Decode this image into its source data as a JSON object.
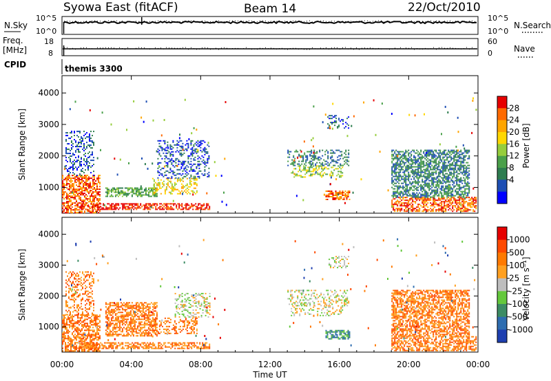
{
  "header": {
    "station": "Syowa East (fitACF)",
    "beam": "Beam 14",
    "date": "22/Oct/2010"
  },
  "nsky_panel": {
    "left_label": "N.Sky",
    "right_label": "N.Search",
    "y_ticks_left": [
      "10^5",
      "10^0"
    ],
    "y_ticks_right": [
      "10^5",
      "10^0"
    ]
  },
  "freq_panel": {
    "left_label_line1": "Freq.",
    "left_label_line2": "[MHz]",
    "right_label": "Nave",
    "y_ticks_left": [
      "18",
      "8"
    ],
    "y_ticks_right": [
      "60",
      "0"
    ]
  },
  "cpid": {
    "label": "CPID",
    "value": "themis 3300"
  },
  "chart_data": [
    {
      "type": "heatmap",
      "name": "power",
      "ylabel": "Slant Range [km]",
      "y_ticks": [
        "4000",
        "3000",
        "2000",
        "1000"
      ],
      "y_tick_values": [
        4000,
        3000,
        2000,
        1000
      ],
      "ylim": [
        180,
        4550
      ],
      "colorbar_label": "Power [dB]",
      "colorbar_ticks": [
        "28",
        "24",
        "20",
        "16",
        "12",
        "8",
        "4"
      ],
      "colorbar_colors": [
        "#0000ff",
        "#1e4fb4",
        "#2e7d50",
        "#4aa04a",
        "#96cd3c",
        "#ffd700",
        "#ffa500",
        "#ff6a00",
        "#e60000"
      ],
      "regions": [
        {
          "t0": 0.0,
          "t1": 2.2,
          "r0": 200,
          "r1": 1400,
          "level": 7
        },
        {
          "t0": 0.2,
          "t1": 1.8,
          "r0": 1400,
          "r1": 2800,
          "level": 1
        },
        {
          "t0": 1.0,
          "t1": 8.5,
          "r0": 300,
          "r1": 500,
          "level": 8
        },
        {
          "t0": 2.5,
          "t1": 5.5,
          "r0": 700,
          "r1": 1000,
          "level": 3
        },
        {
          "t0": 5.2,
          "t1": 7.8,
          "r0": 800,
          "r1": 1300,
          "level": 5
        },
        {
          "t0": 5.5,
          "t1": 8.5,
          "r0": 1300,
          "r1": 2500,
          "level": 1
        },
        {
          "t0": 13.2,
          "t1": 16.2,
          "r0": 1350,
          "r1": 1700,
          "level": 4
        },
        {
          "t0": 13.0,
          "t1": 16.5,
          "r0": 1700,
          "r1": 2200,
          "level": 2
        },
        {
          "t0": 15.2,
          "t1": 16.6,
          "r0": 600,
          "r1": 900,
          "level": 7
        },
        {
          "t0": 15.3,
          "t1": 16.5,
          "r0": 2900,
          "r1": 3300,
          "level": 1
        },
        {
          "t0": 19.0,
          "t1": 23.9,
          "r0": 250,
          "r1": 700,
          "level": 7
        },
        {
          "t0": 19.0,
          "t1": 23.5,
          "r0": 700,
          "r1": 2200,
          "level": 2
        }
      ]
    },
    {
      "type": "heatmap",
      "name": "velocity",
      "ylabel": "Slant Range [km]",
      "y_ticks": [
        "4000",
        "3000",
        "2000",
        "1000"
      ],
      "y_tick_values": [
        4000,
        3000,
        2000,
        1000
      ],
      "ylim": [
        180,
        4550
      ],
      "colorbar_label": "Velocity [m s⁻¹]",
      "colorbar_ticks": [
        "1000",
        "500",
        "100",
        "25",
        "-25",
        "-100",
        "-500",
        "-1000"
      ],
      "colorbar_colors": [
        "#1e3fb0",
        "#2e6db0",
        "#3c8c64",
        "#64c83c",
        "#bebebe",
        "#ffa020",
        "#ff7a00",
        "#ff4a00",
        "#e60000"
      ],
      "regions": [
        {
          "t0": 0.0,
          "t1": 2.2,
          "r0": 200,
          "r1": 1400,
          "level": 6
        },
        {
          "t0": 0.2,
          "t1": 1.8,
          "r0": 1400,
          "r1": 2800,
          "level": 6
        },
        {
          "t0": 1.0,
          "t1": 8.5,
          "r0": 300,
          "r1": 500,
          "level": 6
        },
        {
          "t0": 2.5,
          "t1": 5.5,
          "r0": 700,
          "r1": 1800,
          "level": 6
        },
        {
          "t0": 5.2,
          "t1": 7.8,
          "r0": 800,
          "r1": 1300,
          "level": 6
        },
        {
          "t0": 6.5,
          "t1": 8.5,
          "r0": 1300,
          "r1": 2100,
          "level": 4
        },
        {
          "t0": 13.2,
          "t1": 16.2,
          "r0": 1350,
          "r1": 1700,
          "level": 4
        },
        {
          "t0": 13.0,
          "t1": 16.5,
          "r0": 1700,
          "r1": 2200,
          "level": 4
        },
        {
          "t0": 15.2,
          "t1": 16.6,
          "r0": 600,
          "r1": 900,
          "level": 2
        },
        {
          "t0": 15.3,
          "t1": 16.5,
          "r0": 2900,
          "r1": 3300,
          "level": 4
        },
        {
          "t0": 19.0,
          "t1": 23.9,
          "r0": 250,
          "r1": 700,
          "level": 6
        },
        {
          "t0": 19.0,
          "t1": 23.5,
          "r0": 700,
          "r1": 2200,
          "level": 6
        }
      ]
    }
  ],
  "time_axis": {
    "xlabel": "Time UT",
    "tick_labels": [
      "00:00",
      "04:00",
      "08:00",
      "12:00",
      "16:00",
      "20:00",
      "00:00"
    ],
    "tick_hours": [
      0,
      4,
      8,
      12,
      16,
      20,
      24
    ],
    "xlim": [
      0,
      24
    ]
  }
}
